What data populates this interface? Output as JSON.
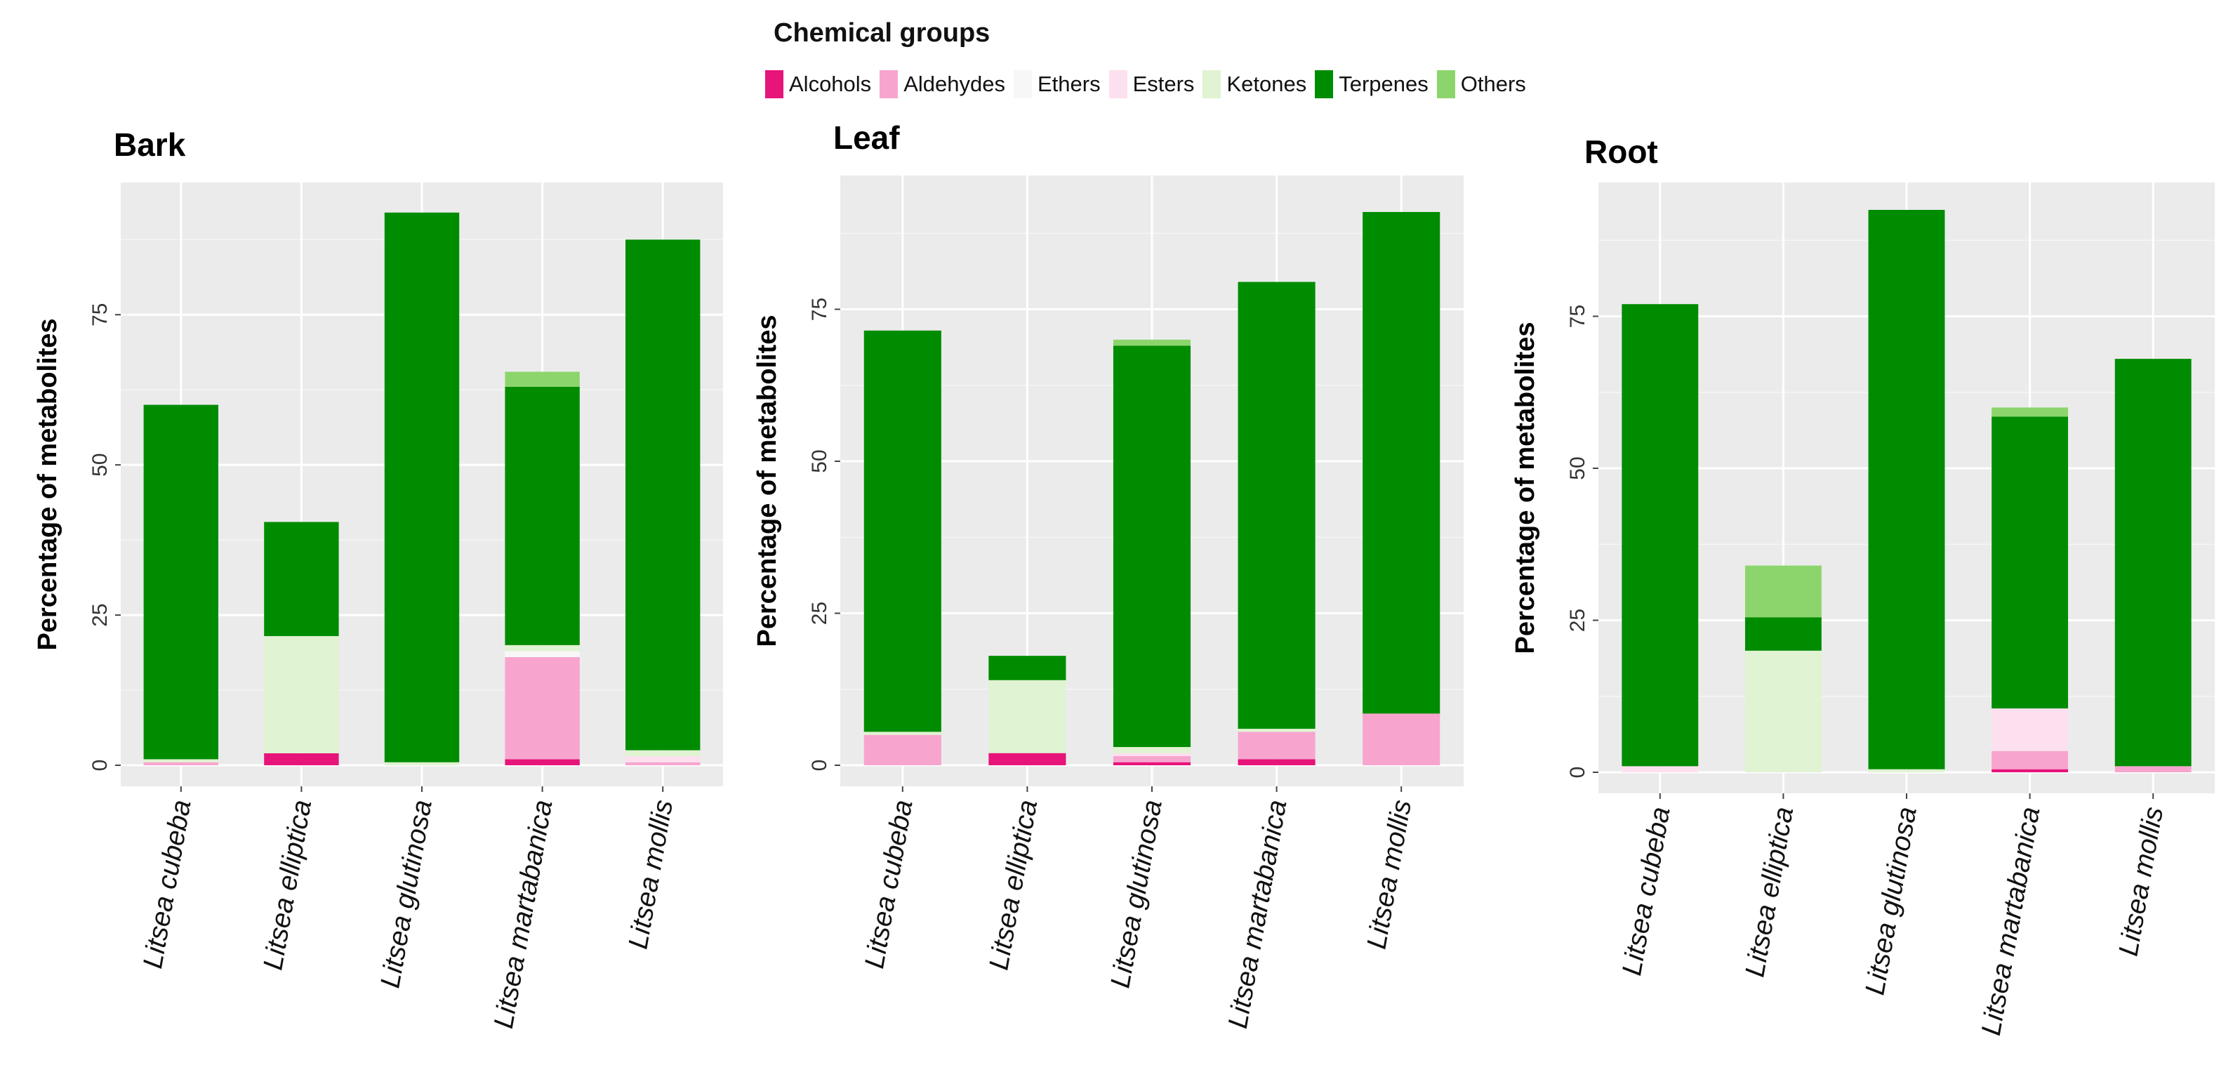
{
  "legend": {
    "title": "Chemical groups",
    "items": [
      {
        "label": "Alcohols",
        "color": "#e7147a"
      },
      {
        "label": "Aldehydes",
        "color": "#f7a5cf"
      },
      {
        "label": "Ethers",
        "color": "#f7f7f7"
      },
      {
        "label": "Esters",
        "color": "#fde0ef"
      },
      {
        "label": "Ketones",
        "color": "#e0f3d2"
      },
      {
        "label": "Terpenes",
        "color": "#008c00"
      },
      {
        "label": "Others",
        "color": "#8cd56c"
      }
    ]
  },
  "chart_data": [
    {
      "type": "bar",
      "stacked": true,
      "title": "Bark",
      "ylabel": "Percentage of metabolites",
      "xlabel": "",
      "ylim": [
        0,
        97
      ],
      "yticks": [
        0,
        25,
        50,
        75
      ],
      "categories": [
        "Litsea cubeba",
        "Litsea elliptica",
        "Litsea glutinosa",
        "Litsea martabanica",
        "Litsea mollis"
      ],
      "series": [
        {
          "name": "Alcohols",
          "values": [
            0,
            2,
            0,
            1,
            0
          ]
        },
        {
          "name": "Aldehydes",
          "values": [
            0.5,
            0,
            0,
            17,
            0.5
          ]
        },
        {
          "name": "Ethers",
          "values": [
            0,
            0,
            0,
            1,
            0
          ]
        },
        {
          "name": "Esters",
          "values": [
            0,
            0,
            0,
            0,
            1
          ]
        },
        {
          "name": "Ketones",
          "values": [
            0.5,
            19.5,
            0.5,
            1,
            1
          ]
        },
        {
          "name": "Terpenes",
          "values": [
            59,
            19,
            91.5,
            43,
            85
          ]
        },
        {
          "name": "Others",
          "values": [
            0,
            0,
            0,
            2.5,
            0
          ]
        }
      ]
    },
    {
      "type": "bar",
      "stacked": true,
      "title": "Leaf",
      "ylabel": "Percentage of metabolites",
      "xlabel": "",
      "ylim": [
        0,
        97
      ],
      "yticks": [
        0,
        25,
        50,
        75
      ],
      "categories": [
        "Litsea cubeba",
        "Litsea elliptica",
        "Litsea glutinosa",
        "Litsea martabanica",
        "Litsea mollis"
      ],
      "series": [
        {
          "name": "Alcohols",
          "values": [
            0,
            2,
            0.5,
            1,
            0
          ]
        },
        {
          "name": "Aldehydes",
          "values": [
            5,
            0,
            1,
            4.5,
            8.5
          ]
        },
        {
          "name": "Ethers",
          "values": [
            0,
            0,
            0,
            0,
            0
          ]
        },
        {
          "name": "Esters",
          "values": [
            0,
            0,
            0.5,
            0,
            0
          ]
        },
        {
          "name": "Ketones",
          "values": [
            0.5,
            12,
            1,
            0.5,
            0
          ]
        },
        {
          "name": "Terpenes",
          "values": [
            66,
            4,
            66,
            73.5,
            82.5
          ]
        },
        {
          "name": "Others",
          "values": [
            0,
            0,
            1,
            0,
            0
          ]
        }
      ]
    },
    {
      "type": "bar",
      "stacked": true,
      "title": "Root",
      "ylabel": "Percentage of metabolites",
      "xlabel": "",
      "ylim": [
        0,
        97
      ],
      "yticks": [
        0,
        25,
        50,
        75
      ],
      "categories": [
        "Litsea cubeba",
        "Litsea elliptica",
        "Litsea glutinosa",
        "Litsea martabanica",
        "Litsea mollis"
      ],
      "series": [
        {
          "name": "Alcohols",
          "values": [
            0,
            0,
            0,
            0.5,
            0
          ]
        },
        {
          "name": "Aldehydes",
          "values": [
            0,
            0,
            0,
            3,
            1
          ]
        },
        {
          "name": "Ethers",
          "values": [
            0,
            0,
            0,
            0,
            0
          ]
        },
        {
          "name": "Esters",
          "values": [
            1,
            0,
            0,
            7,
            0
          ]
        },
        {
          "name": "Ketones",
          "values": [
            0,
            20,
            0.5,
            0,
            0
          ]
        },
        {
          "name": "Terpenes",
          "values": [
            76,
            5.5,
            92,
            48,
            67
          ]
        },
        {
          "name": "Others",
          "values": [
            0,
            8.5,
            0,
            1.5,
            0
          ]
        }
      ]
    }
  ]
}
